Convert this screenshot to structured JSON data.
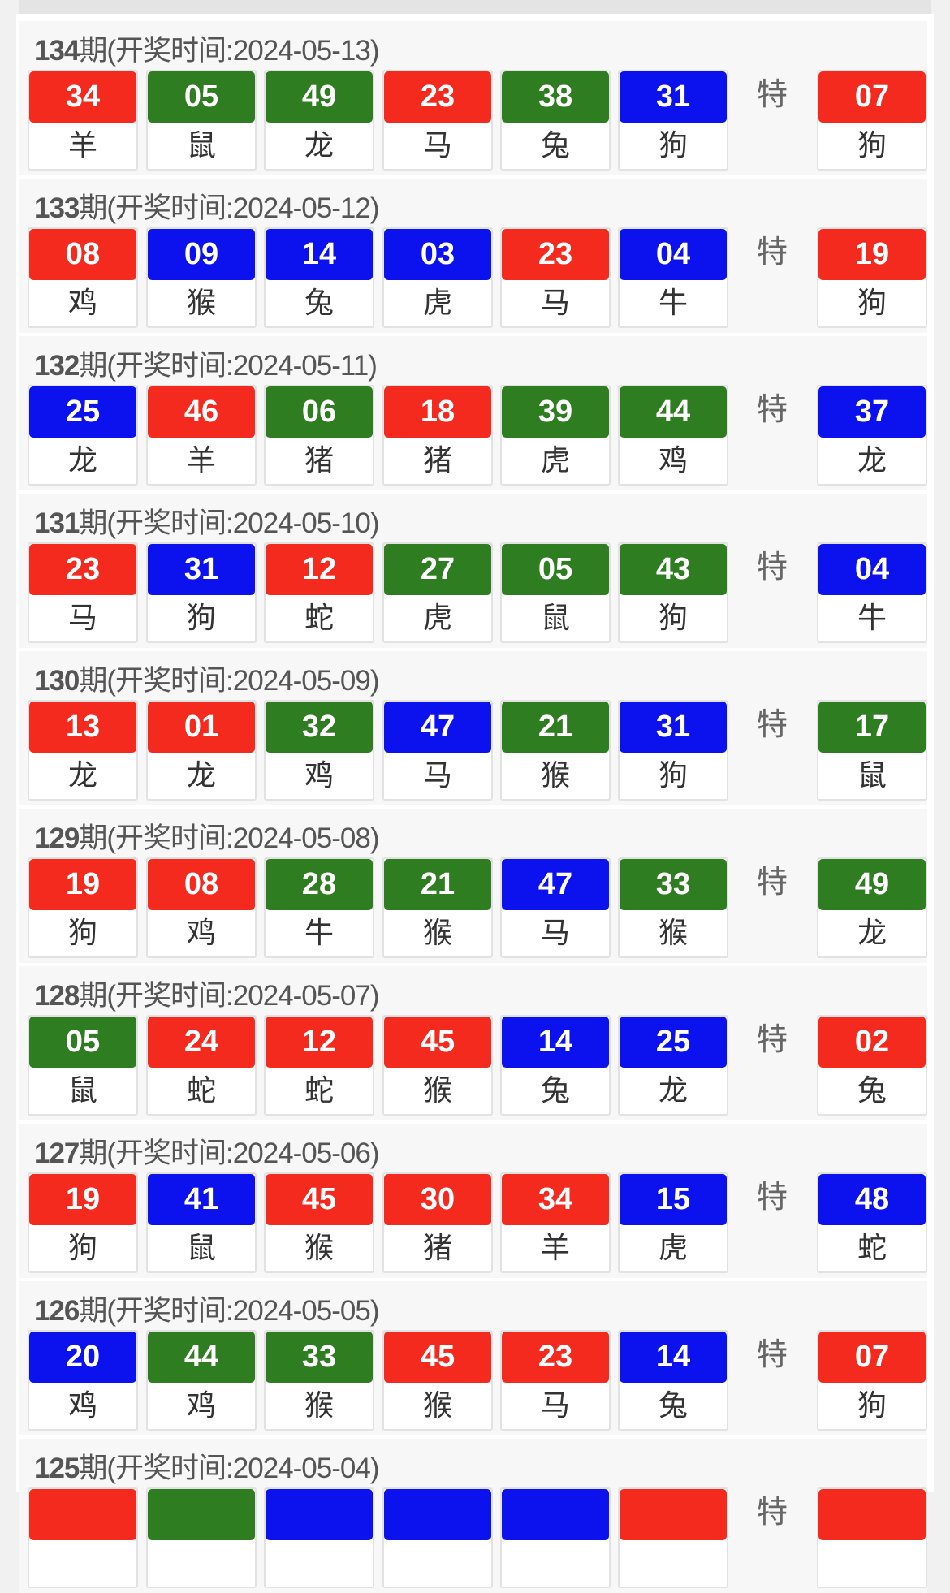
{
  "special_label": "特",
  "colors": {
    "red": "#f52a1f",
    "green": "#2f7d21",
    "blue": "#0c12ee"
  },
  "records": [
    {
      "issue": "134",
      "label": "期(开奖时间:2024-05-13)",
      "balls": [
        [
          "34",
          "red",
          "羊"
        ],
        [
          "05",
          "green",
          "鼠"
        ],
        [
          "49",
          "green",
          "龙"
        ],
        [
          "23",
          "red",
          "马"
        ],
        [
          "38",
          "green",
          "兔"
        ],
        [
          "31",
          "blue",
          "狗"
        ]
      ],
      "special": [
        "07",
        "red",
        "狗"
      ]
    },
    {
      "issue": "133",
      "label": "期(开奖时间:2024-05-12)",
      "balls": [
        [
          "08",
          "red",
          "鸡"
        ],
        [
          "09",
          "blue",
          "猴"
        ],
        [
          "14",
          "blue",
          "兔"
        ],
        [
          "03",
          "blue",
          "虎"
        ],
        [
          "23",
          "red",
          "马"
        ],
        [
          "04",
          "blue",
          "牛"
        ]
      ],
      "special": [
        "19",
        "red",
        "狗"
      ]
    },
    {
      "issue": "132",
      "label": "期(开奖时间:2024-05-11)",
      "balls": [
        [
          "25",
          "blue",
          "龙"
        ],
        [
          "46",
          "red",
          "羊"
        ],
        [
          "06",
          "green",
          "猪"
        ],
        [
          "18",
          "red",
          "猪"
        ],
        [
          "39",
          "green",
          "虎"
        ],
        [
          "44",
          "green",
          "鸡"
        ]
      ],
      "special": [
        "37",
        "blue",
        "龙"
      ]
    },
    {
      "issue": "131",
      "label": "期(开奖时间:2024-05-10)",
      "balls": [
        [
          "23",
          "red",
          "马"
        ],
        [
          "31",
          "blue",
          "狗"
        ],
        [
          "12",
          "red",
          "蛇"
        ],
        [
          "27",
          "green",
          "虎"
        ],
        [
          "05",
          "green",
          "鼠"
        ],
        [
          "43",
          "green",
          "狗"
        ]
      ],
      "special": [
        "04",
        "blue",
        "牛"
      ]
    },
    {
      "issue": "130",
      "label": "期(开奖时间:2024-05-09)",
      "balls": [
        [
          "13",
          "red",
          "龙"
        ],
        [
          "01",
          "red",
          "龙"
        ],
        [
          "32",
          "green",
          "鸡"
        ],
        [
          "47",
          "blue",
          "马"
        ],
        [
          "21",
          "green",
          "猴"
        ],
        [
          "31",
          "blue",
          "狗"
        ]
      ],
      "special": [
        "17",
        "green",
        "鼠"
      ]
    },
    {
      "issue": "129",
      "label": "期(开奖时间:2024-05-08)",
      "balls": [
        [
          "19",
          "red",
          "狗"
        ],
        [
          "08",
          "red",
          "鸡"
        ],
        [
          "28",
          "green",
          "牛"
        ],
        [
          "21",
          "green",
          "猴"
        ],
        [
          "47",
          "blue",
          "马"
        ],
        [
          "33",
          "green",
          "猴"
        ]
      ],
      "special": [
        "49",
        "green",
        "龙"
      ]
    },
    {
      "issue": "128",
      "label": "期(开奖时间:2024-05-07)",
      "balls": [
        [
          "05",
          "green",
          "鼠"
        ],
        [
          "24",
          "red",
          "蛇"
        ],
        [
          "12",
          "red",
          "蛇"
        ],
        [
          "45",
          "red",
          "猴"
        ],
        [
          "14",
          "blue",
          "兔"
        ],
        [
          "25",
          "blue",
          "龙"
        ]
      ],
      "special": [
        "02",
        "red",
        "兔"
      ]
    },
    {
      "issue": "127",
      "label": "期(开奖时间:2024-05-06)",
      "balls": [
        [
          "19",
          "red",
          "狗"
        ],
        [
          "41",
          "blue",
          "鼠"
        ],
        [
          "45",
          "red",
          "猴"
        ],
        [
          "30",
          "red",
          "猪"
        ],
        [
          "34",
          "red",
          "羊"
        ],
        [
          "15",
          "blue",
          "虎"
        ]
      ],
      "special": [
        "48",
        "blue",
        "蛇"
      ]
    },
    {
      "issue": "126",
      "label": "期(开奖时间:2024-05-05)",
      "balls": [
        [
          "20",
          "blue",
          "鸡"
        ],
        [
          "44",
          "green",
          "鸡"
        ],
        [
          "33",
          "green",
          "猴"
        ],
        [
          "45",
          "red",
          "猴"
        ],
        [
          "23",
          "red",
          "马"
        ],
        [
          "14",
          "blue",
          "兔"
        ]
      ],
      "special": [
        "07",
        "red",
        "狗"
      ]
    },
    {
      "issue": "125",
      "label": "期(开奖时间:2024-05-04)",
      "balls": [
        [
          "",
          "red",
          ""
        ],
        [
          "",
          "green",
          ""
        ],
        [
          "",
          "blue",
          ""
        ],
        [
          "",
          "blue",
          ""
        ],
        [
          "",
          "blue",
          ""
        ],
        [
          "",
          "red",
          ""
        ]
      ],
      "special": [
        "",
        "red",
        ""
      ]
    }
  ]
}
